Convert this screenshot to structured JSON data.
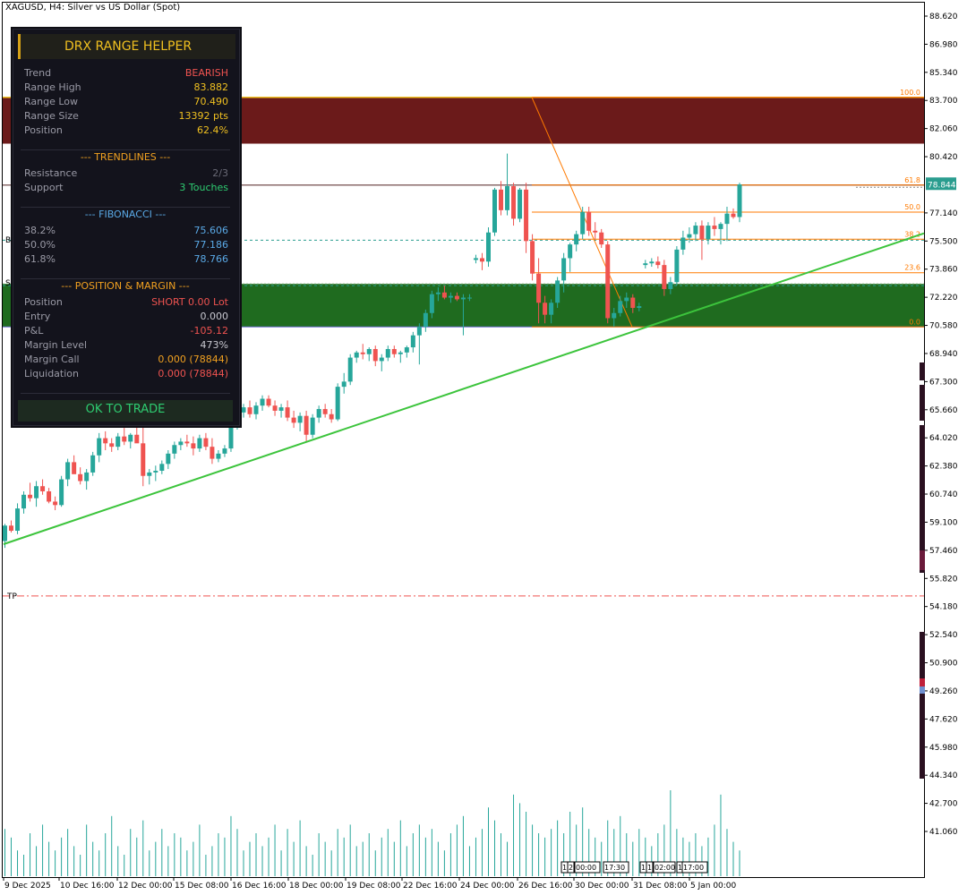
{
  "window": {
    "title": "XAGUSD, H4:  Silver vs US Dollar (Spot)"
  },
  "colors": {
    "bull": "#26a69a",
    "bear": "#ef5350",
    "zone_top": "#6b1a1a",
    "zone_bottom": "#1f6b1f",
    "trendline": "#3cc43c",
    "fib": "#ff7a00",
    "price_marker": "#2a9d8f",
    "tp": "#ef5350"
  },
  "axis": {
    "price_labels": [
      "88.620",
      "86.980",
      "85.340",
      "83.700",
      "82.060",
      "80.420",
      "77.140",
      "75.500",
      "73.860",
      "72.220",
      "70.580",
      "68.940",
      "67.300",
      "65.660",
      "64.020",
      "62.380",
      "60.740",
      "59.100",
      "57.460",
      "55.820",
      "54.180",
      "52.540",
      "50.900",
      "49.260",
      "47.620",
      "45.980",
      "44.340",
      "42.700",
      "41.060"
    ],
    "current_price": "78.844",
    "time_labels": [
      "9 Dec 2025",
      "10 Dec 16:00",
      "12 Dec 00:00",
      "15 Dec 08:00",
      "16 Dec 16:00",
      "18 Dec 00:00",
      "19 Dec 08:00",
      "22 Dec 16:00",
      "24 Dec 00:00",
      "26 Dec 16:00",
      "30 Dec 00:00",
      "31 Dec 08:00",
      "5 Jan 00:00"
    ],
    "session_tags": [
      "1",
      "2",
      "00:00",
      "17:30",
      "1",
      "1",
      "02:00",
      "1",
      "17:00"
    ]
  },
  "fib_labels": [
    "100.0",
    "61.8",
    "50.0",
    "38.2",
    "23.6",
    "0.0"
  ],
  "side_labels": {
    "b": "B",
    "s": "S",
    "tp": "TP"
  },
  "panel": {
    "title": "DRX RANGE HELPER",
    "rows": [
      {
        "label": "Trend",
        "value": "BEARISH",
        "color": "#ef5350"
      },
      {
        "label": "Range High",
        "value": "83.882",
        "color": "#f0c020"
      },
      {
        "label": "Range Low",
        "value": "70.490",
        "color": "#f0c020"
      },
      {
        "label": "Range Size",
        "value": "13392 pts",
        "color": "#f0c020"
      },
      {
        "label": "Position",
        "value": "62.4%",
        "color": "#f0c020"
      }
    ],
    "trendlines_header": "--- TRENDLINES ---",
    "trendlines": [
      {
        "label": "Resistance",
        "value": "2/3",
        "color": "#6a6a76"
      },
      {
        "label": "Support",
        "value": "3 Touches",
        "color": "#2ecc71"
      }
    ],
    "fib_header": "--- FIBONACCI ---",
    "fib": [
      {
        "label": "38.2%",
        "value": "75.606",
        "color": "#5aa9e6"
      },
      {
        "label": "50.0%",
        "value": "77.186",
        "color": "#5aa9e6"
      },
      {
        "label": "61.8%",
        "value": "78.766",
        "color": "#5aa9e6"
      }
    ],
    "pos_header": "--- POSITION & MARGIN ---",
    "pos": [
      {
        "label": "Position",
        "value": "SHORT 0.00 Lot",
        "color": "#ef5350"
      },
      {
        "label": "Entry",
        "value": "0.000",
        "color": "#c8c8d0"
      },
      {
        "label": "P&L",
        "value": "-105.12",
        "color": "#ef5350"
      },
      {
        "label": "Margin Level",
        "value": "473%",
        "color": "#c8c8d0"
      },
      {
        "label": "Margin Call",
        "value": "0.000 (78844)",
        "color": "#f0a020"
      },
      {
        "label": "Liquidation",
        "value": "0.000 (78844)",
        "color": "#ef5350"
      }
    ],
    "status": "OK TO TRADE"
  },
  "chart_data": {
    "type": "candlestick",
    "symbol": "XAGUSD",
    "timeframe": "H4",
    "ylim": [
      40.0,
      89.5
    ],
    "current_price": 78.844,
    "range_high": 83.882,
    "range_low": 70.49,
    "fib_levels": {
      "100.0": 83.882,
      "61.8": 78.766,
      "50.0": 77.186,
      "38.2": 75.606,
      "23.6": 73.65,
      "0.0": 70.49
    },
    "candles": [
      [
        58.0,
        59.0,
        57.6,
        58.9
      ],
      [
        58.9,
        59.2,
        58.5,
        58.6
      ],
      [
        58.6,
        60.2,
        58.4,
        59.9
      ],
      [
        59.9,
        60.9,
        59.6,
        60.7
      ],
      [
        60.7,
        61.4,
        60.3,
        60.5
      ],
      [
        60.5,
        61.5,
        60.0,
        61.2
      ],
      [
        61.2,
        61.6,
        60.7,
        60.9
      ],
      [
        60.9,
        61.1,
        60.2,
        60.3
      ],
      [
        60.3,
        60.6,
        59.8,
        60.1
      ],
      [
        60.1,
        61.8,
        60.0,
        61.6
      ],
      [
        61.6,
        62.8,
        61.2,
        62.6
      ],
      [
        62.6,
        63.0,
        62.1,
        61.9
      ],
      [
        61.9,
        62.3,
        61.3,
        61.5
      ],
      [
        61.5,
        62.2,
        61.0,
        62.0
      ],
      [
        62.0,
        63.2,
        61.8,
        63.0
      ],
      [
        63.0,
        64.3,
        62.6,
        64.0
      ],
      [
        64.0,
        64.4,
        63.3,
        63.7
      ],
      [
        63.7,
        64.0,
        63.2,
        63.5
      ],
      [
        63.5,
        64.3,
        63.3,
        64.1
      ],
      [
        64.1,
        64.6,
        63.6,
        63.8
      ],
      [
        63.8,
        64.3,
        63.4,
        64.2
      ],
      [
        64.2,
        64.7,
        63.8,
        63.7
      ],
      [
        63.7,
        64.8,
        61.2,
        61.8
      ],
      [
        61.8,
        62.2,
        61.3,
        62.0
      ],
      [
        62.0,
        62.4,
        61.5,
        62.1
      ],
      [
        62.1,
        62.7,
        61.9,
        62.5
      ],
      [
        62.5,
        63.3,
        62.2,
        63.1
      ],
      [
        63.1,
        63.8,
        62.8,
        63.6
      ],
      [
        63.6,
        64.0,
        63.3,
        63.8
      ],
      [
        63.8,
        64.2,
        63.5,
        63.7
      ],
      [
        63.7,
        64.1,
        63.0,
        63.4
      ],
      [
        63.4,
        64.2,
        63.2,
        64.0
      ],
      [
        64.0,
        64.3,
        63.3,
        63.5
      ],
      [
        63.5,
        64.0,
        62.5,
        62.8
      ],
      [
        62.8,
        63.3,
        62.6,
        63.1
      ],
      [
        63.1,
        63.6,
        62.9,
        63.4
      ],
      [
        63.4,
        65.0,
        63.2,
        64.8
      ],
      [
        64.8,
        65.8,
        64.5,
        65.5
      ],
      [
        65.5,
        66.0,
        65.2,
        65.8
      ],
      [
        65.8,
        66.2,
        65.2,
        65.4
      ],
      [
        65.4,
        66.1,
        65.1,
        65.9
      ],
      [
        65.9,
        66.5,
        65.6,
        66.3
      ],
      [
        66.3,
        66.5,
        65.8,
        65.9
      ],
      [
        65.9,
        66.2,
        65.3,
        65.6
      ],
      [
        65.6,
        66.0,
        65.2,
        65.8
      ],
      [
        65.8,
        66.2,
        65.0,
        65.2
      ],
      [
        65.2,
        65.6,
        64.6,
        64.9
      ],
      [
        64.9,
        65.5,
        64.4,
        65.3
      ],
      [
        65.3,
        65.6,
        63.8,
        64.2
      ],
      [
        64.2,
        65.4,
        64.0,
        65.2
      ],
      [
        65.2,
        65.9,
        64.9,
        65.7
      ],
      [
        65.7,
        66.0,
        65.2,
        65.4
      ],
      [
        65.4,
        65.7,
        64.9,
        65.1
      ],
      [
        65.1,
        67.2,
        65.0,
        67.0
      ],
      [
        67.0,
        67.8,
        66.6,
        67.3
      ],
      [
        67.3,
        68.9,
        67.1,
        68.7
      ],
      [
        68.7,
        69.1,
        68.4,
        69.0
      ],
      [
        69.0,
        69.5,
        68.6,
        68.9
      ],
      [
        68.9,
        69.3,
        68.5,
        69.2
      ],
      [
        69.2,
        69.4,
        68.2,
        68.5
      ],
      [
        68.5,
        68.9,
        67.9,
        68.7
      ],
      [
        68.7,
        69.4,
        68.5,
        69.2
      ],
      [
        69.2,
        69.4,
        68.7,
        68.9
      ],
      [
        68.9,
        69.1,
        68.4,
        69.0
      ],
      [
        69.0,
        69.4,
        68.7,
        69.3
      ],
      [
        69.3,
        70.2,
        69.0,
        70.0
      ],
      [
        70.0,
        70.7,
        68.3,
        70.5
      ],
      [
        70.5,
        71.5,
        70.2,
        71.3
      ],
      [
        71.3,
        72.6,
        71.0,
        72.4
      ],
      [
        72.4,
        72.8,
        72.0,
        72.5
      ],
      [
        72.5,
        72.9,
        72.1,
        72.2
      ],
      [
        72.2,
        72.5,
        71.9,
        72.3
      ],
      [
        72.3,
        72.5,
        72.0,
        72.1
      ],
      [
        72.1,
        72.4,
        70.0,
        72.2
      ],
      [
        72.2,
        72.4,
        72.0,
        72.2
      ],
      [
        74.4,
        74.7,
        74.2,
        74.5
      ],
      [
        74.5,
        74.8,
        73.8,
        74.3
      ],
      [
        74.3,
        76.3,
        74.0,
        76.0
      ],
      [
        76.0,
        78.6,
        75.8,
        78.5
      ],
      [
        78.5,
        79.0,
        77.0,
        77.3
      ],
      [
        77.3,
        80.6,
        77.0,
        78.7
      ],
      [
        78.7,
        78.9,
        76.4,
        76.8
      ],
      [
        76.8,
        78.6,
        76.6,
        78.5
      ],
      [
        78.5,
        78.9,
        74.8,
        75.5
      ],
      [
        75.5,
        75.9,
        73.2,
        73.6
      ],
      [
        73.6,
        74.5,
        70.7,
        71.9
      ],
      [
        71.9,
        72.3,
        70.7,
        71.2
      ],
      [
        71.2,
        72.1,
        70.7,
        71.9
      ],
      [
        71.9,
        73.4,
        71.6,
        73.2
      ],
      [
        73.2,
        74.8,
        72.5,
        74.5
      ],
      [
        74.5,
        75.4,
        73.7,
        75.3
      ],
      [
        75.3,
        76.1,
        74.9,
        75.9
      ],
      [
        75.9,
        77.5,
        75.6,
        77.2
      ],
      [
        77.2,
        77.5,
        75.8,
        76.1
      ],
      [
        76.1,
        76.6,
        75.6,
        76.0
      ],
      [
        76.0,
        76.2,
        75.1,
        75.3
      ],
      [
        75.3,
        75.5,
        70.7,
        71.0
      ],
      [
        71.0,
        71.6,
        70.5,
        71.3
      ],
      [
        71.3,
        72.3,
        71.1,
        72.0
      ],
      [
        72.0,
        72.5,
        71.6,
        72.2
      ],
      [
        72.2,
        72.4,
        71.3,
        71.6
      ],
      [
        71.6,
        71.9,
        71.4,
        71.7
      ],
      [
        74.1,
        74.4,
        73.9,
        74.2
      ],
      [
        74.2,
        74.5,
        74.0,
        74.3
      ],
      [
        74.3,
        74.6,
        73.9,
        74.1
      ],
      [
        74.1,
        74.4,
        72.3,
        72.7
      ],
      [
        72.7,
        73.4,
        72.4,
        73.1
      ],
      [
        73.1,
        75.2,
        72.9,
        75.0
      ],
      [
        75.0,
        76.1,
        74.7,
        75.7
      ],
      [
        75.7,
        76.3,
        75.4,
        75.9
      ],
      [
        75.9,
        76.6,
        75.5,
        76.4
      ],
      [
        76.4,
        76.7,
        74.4,
        75.6
      ],
      [
        75.6,
        76.6,
        75.3,
        76.4
      ],
      [
        76.4,
        76.9,
        75.8,
        76.2
      ],
      [
        76.2,
        76.6,
        75.3,
        76.5
      ],
      [
        76.5,
        77.5,
        75.5,
        77.1
      ],
      [
        77.1,
        77.4,
        76.8,
        76.9
      ],
      [
        76.9,
        78.9,
        76.6,
        78.8
      ]
    ],
    "volume": [
      0.55,
      0.45,
      0.3,
      0.25,
      0.5,
      0.35,
      0.6,
      0.4,
      0.3,
      0.45,
      0.55,
      0.35,
      0.25,
      0.6,
      0.4,
      0.3,
      0.5,
      0.7,
      0.35,
      0.25,
      0.55,
      0.45,
      0.65,
      0.3,
      0.4,
      0.55,
      0.35,
      0.5,
      0.45,
      0.3,
      0.4,
      0.6,
      0.25,
      0.35,
      0.5,
      0.45,
      0.7,
      0.55,
      0.3,
      0.4,
      0.5,
      0.35,
      0.45,
      0.6,
      0.3,
      0.55,
      0.4,
      0.65,
      0.35,
      0.25,
      0.5,
      0.4,
      0.3,
      0.55,
      0.45,
      0.6,
      0.35,
      0.4,
      0.5,
      0.3,
      0.45,
      0.55,
      0.4,
      0.65,
      0.35,
      0.5,
      0.6,
      0.45,
      0.55,
      0.4,
      0.3,
      0.5,
      0.6,
      0.7,
      0.35,
      0.45,
      0.55,
      0.8,
      0.65,
      0.5,
      0.4,
      0.95,
      0.85,
      0.75,
      0.6,
      0.5,
      0.45,
      0.55,
      0.65,
      0.5,
      0.75,
      0.6,
      0.8,
      0.55,
      0.45,
      0.4,
      0.65,
      0.55,
      0.7,
      0.5,
      0.4,
      0.55,
      0.45,
      0.35,
      0.5,
      0.6,
      1.0,
      0.55,
      0.45,
      0.4,
      0.5,
      0.35,
      0.45,
      0.6,
      0.95,
      0.55,
      0.4,
      0.3
    ]
  }
}
